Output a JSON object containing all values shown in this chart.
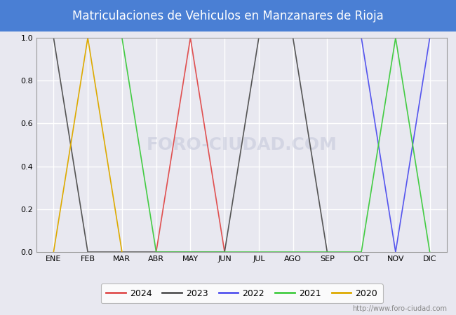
{
  "title": "Matriculaciones de Vehiculos en Manzanares de Rioja",
  "title_bg_color": "#4a7fd4",
  "title_text_color": "white",
  "months": [
    "ENE",
    "FEB",
    "MAR",
    "ABR",
    "MAY",
    "JUN",
    "JUL",
    "AGO",
    "SEP",
    "OCT",
    "NOV",
    "DIC"
  ],
  "month_indices": [
    1,
    2,
    3,
    4,
    5,
    6,
    7,
    8,
    9,
    10,
    11,
    12
  ],
  "ylim": [
    0.0,
    1.0
  ],
  "yticks": [
    0.0,
    0.2,
    0.4,
    0.6,
    0.8,
    1.0
  ],
  "watermark": "http://www.foro-ciudad.com",
  "series": [
    {
      "year": "2024",
      "color": "#e05050",
      "data": [
        [
          4,
          0.0
        ],
        [
          5,
          1.0
        ],
        [
          6,
          0.0
        ]
      ]
    },
    {
      "year": "2023",
      "color": "#555555",
      "data": [
        [
          1,
          1.0
        ],
        [
          2,
          0.0
        ],
        [
          6,
          0.0
        ],
        [
          7,
          1.0
        ],
        [
          8,
          1.0
        ],
        [
          9,
          0.0
        ]
      ]
    },
    {
      "year": "2022",
      "color": "#5555ee",
      "data": [
        [
          10,
          1.0
        ],
        [
          11,
          0.0
        ],
        [
          12,
          1.0
        ]
      ]
    },
    {
      "year": "2021",
      "color": "#44cc44",
      "data": [
        [
          3,
          1.0
        ],
        [
          4,
          0.0
        ],
        [
          10,
          0.0
        ],
        [
          11,
          1.0
        ],
        [
          12,
          0.0
        ]
      ]
    },
    {
      "year": "2020",
      "color": "#ddaa00",
      "data": [
        [
          1,
          0.0
        ],
        [
          2,
          1.0
        ],
        [
          3,
          0.0
        ]
      ]
    }
  ],
  "plot_bg_color": "#e8e8f0",
  "grid_color": "white",
  "fig_bg_color": "#e8e8f0",
  "legend_bg": "white",
  "legend_edge": "#aaaaaa"
}
